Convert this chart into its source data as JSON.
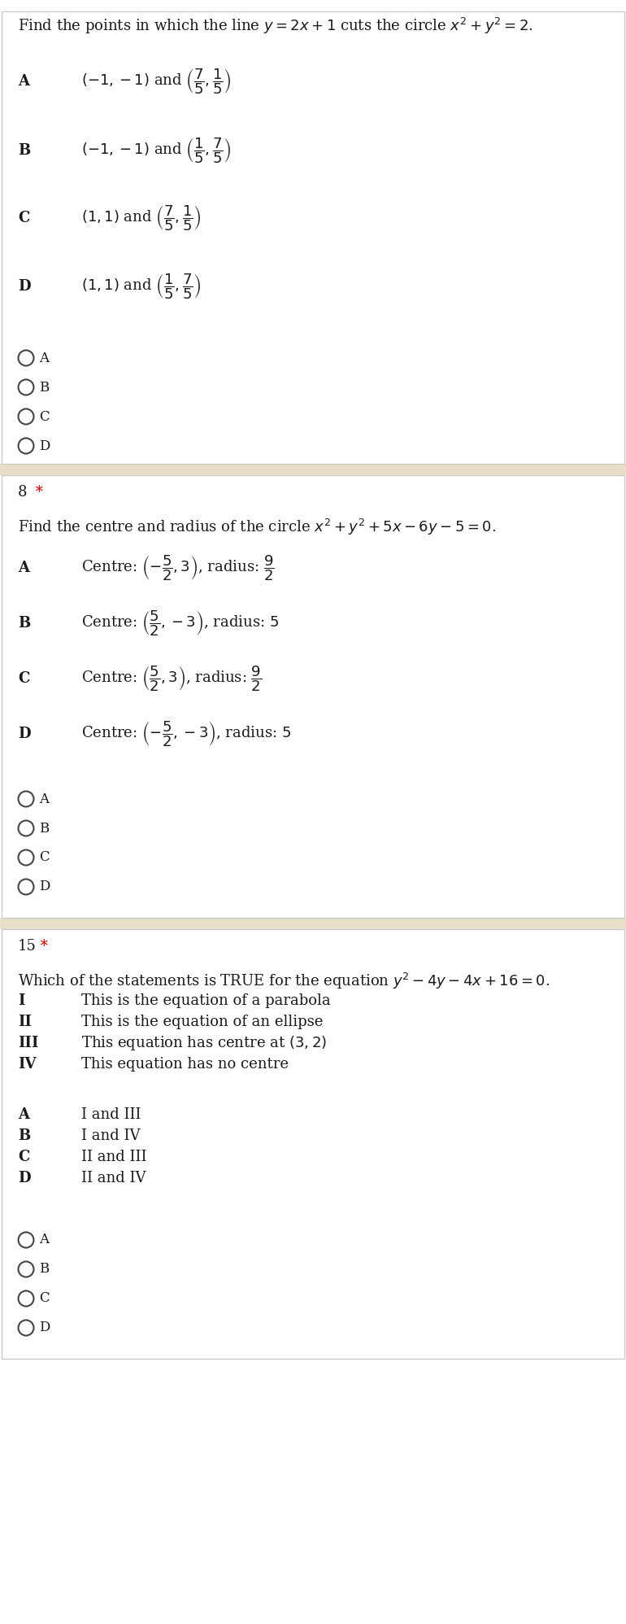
{
  "bg_color": "#ffffff",
  "divider_color": "#e8dfc8",
  "text_color": "#1a1a1a",
  "star_color": "#cc0000",
  "radio_color": "#444444",
  "border_color": "#cccccc",
  "q1": {
    "question": "Find the points in which the line $y = 2x + 1$ cuts the circle $x^2 + y^2 = 2$.",
    "options": [
      [
        "A",
        "$(-1,-1)$ and $\\left(\\dfrac{7}{5},\\dfrac{1}{5}\\right)$"
      ],
      [
        "B",
        "$(-1,-1)$ and $\\left(\\dfrac{1}{5},\\dfrac{7}{5}\\right)$"
      ],
      [
        "C",
        "$(1,1)$ and $\\left(\\dfrac{7}{5},\\dfrac{1}{5}\\right)$"
      ],
      [
        "D",
        "$(1,1)$ and $\\left(\\dfrac{1}{5},\\dfrac{7}{5}\\right)$"
      ]
    ],
    "radios": [
      "A",
      "B",
      "C",
      "D"
    ]
  },
  "q2": {
    "number": "8",
    "question": "Find the centre and radius of the circle $x^2 + y^2 + 5x - 6y - 5 = 0$.",
    "options": [
      [
        "A",
        "Centre: $\\left(-\\dfrac{5}{2},3\\right)$, radius: $\\dfrac{9}{2}$"
      ],
      [
        "B",
        "Centre: $\\left(\\dfrac{5}{2},-3\\right)$, radius: $5$"
      ],
      [
        "C",
        "Centre: $\\left(\\dfrac{5}{2},3\\right)$, radius: $\\dfrac{9}{2}$"
      ],
      [
        "D",
        "Centre: $\\left(-\\dfrac{5}{2},-3\\right)$, radius: $5$"
      ]
    ],
    "radios": [
      "A",
      "B",
      "C",
      "D"
    ]
  },
  "q3": {
    "number": "15",
    "question": "Which of the statements is TRUE for the equation $y^2 - 4y - 4x + 16 = 0$.",
    "statements": [
      [
        "I",
        "This is the equation of a parabola"
      ],
      [
        "II",
        "This is the equation of an ellipse"
      ],
      [
        "III",
        "This equation has centre at $(3,2)$"
      ],
      [
        "IV",
        "This equation has no centre"
      ]
    ],
    "options": [
      [
        "A",
        "I and III"
      ],
      [
        "B",
        "I and IV"
      ],
      [
        "C",
        "II and III"
      ],
      [
        "D",
        "II and IV"
      ]
    ],
    "radios": [
      "A",
      "B",
      "C",
      "D"
    ]
  }
}
